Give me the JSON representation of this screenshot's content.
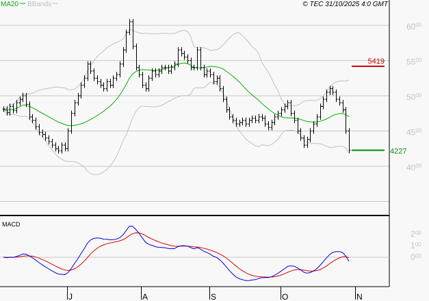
{
  "chart_data": {
    "type": "line",
    "title": "",
    "copyright": "© TEC 31/10/2025 4:0 GMT",
    "legend": [
      {
        "name": "MA20",
        "color": "#00b000"
      },
      {
        "name": "BBands",
        "color": "#c0c0c0"
      }
    ],
    "legend_placement": "top-left",
    "grid": true,
    "price_axis": {
      "ticks": [
        "6000",
        "5500",
        "5000",
        "4500",
        "4000"
      ],
      "ylim": [
        3500,
        6350
      ]
    },
    "x_ticks": [
      "J",
      "A",
      "S",
      "O",
      "N"
    ],
    "close": [
      4810,
      4760,
      4850,
      4790,
      4900,
      4950,
      5000,
      4880,
      4700,
      4650,
      4560,
      4480,
      4450,
      4400,
      4350,
      4300,
      4250,
      4220,
      4300,
      4250,
      4500,
      4750,
      4900,
      5000,
      5150,
      5250,
      5450,
      5350,
      5250,
      5200,
      5150,
      5100,
      5200,
      5150,
      5250,
      5300,
      5450,
      5650,
      5900,
      6050,
      5700,
      5400,
      5300,
      5150,
      5100,
      5250,
      5350,
      5300,
      5350,
      5400,
      5400,
      5350,
      5400,
      5450,
      5650,
      5600,
      5550,
      5500,
      5400,
      5400,
      5650,
      5400,
      5300,
      5350,
      5300,
      5200,
      5250,
      5100,
      4950,
      4800,
      4700,
      4650,
      4600,
      4620,
      4650,
      4600,
      4650,
      4680,
      4650,
      4700,
      4680,
      4600,
      4550,
      4620,
      4700,
      4750,
      4800,
      4850,
      4900,
      4750,
      4650,
      4500,
      4400,
      4300,
      4380,
      4500,
      4600,
      4700,
      4850,
      4950,
      5050,
      5100,
      5050,
      4950,
      4900,
      4800,
      4500,
      4227
    ],
    "markers": [
      {
        "label": "5419",
        "value": 5419,
        "color": "#cc0000"
      },
      {
        "label": "4227",
        "value": 4227,
        "color": "#009000"
      }
    ],
    "macd": {
      "label": "MACD",
      "ticks": [
        "200",
        "100",
        "000"
      ],
      "line_color": "#0000dd",
      "signal_color": "#dd0000"
    }
  }
}
